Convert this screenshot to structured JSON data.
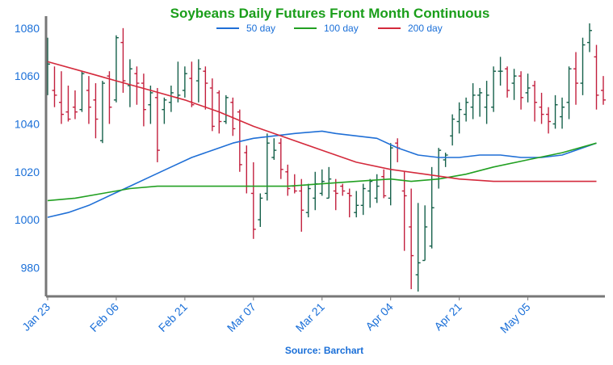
{
  "chart_data": {
    "type": "ohlc",
    "title": "Soybeans Daily Futures Front Month Continuous",
    "source": "Source: Barchart",
    "ylim": [
      968,
      1085
    ],
    "yticks": [
      980,
      1000,
      1020,
      1040,
      1060,
      1080
    ],
    "x_tick_labels": [
      "Jan 23",
      "Feb 06",
      "Feb 21",
      "Mar 07",
      "Mar 21",
      "Apr 04",
      "Apr 21",
      "May 05"
    ],
    "x_tick_index": [
      0,
      10,
      20,
      30,
      40,
      50,
      60,
      70
    ],
    "bars": [
      [
        1057,
        1076,
        1052,
        1065
      ],
      [
        1054,
        1064,
        1047,
        1052
      ],
      [
        1049,
        1062,
        1040,
        1044
      ],
      [
        1045,
        1056,
        1041,
        1042
      ],
      [
        1047,
        1054,
        1042,
        1045
      ],
      [
        1046,
        1062,
        1045,
        1061
      ],
      [
        1054,
        1060,
        1040,
        1047
      ],
      [
        1050,
        1057,
        1034,
        1042
      ],
      [
        1033,
        1058,
        1032,
        1057
      ],
      [
        1060,
        1062,
        1040,
        1047
      ],
      [
        1050,
        1077,
        1049,
        1076
      ],
      [
        1074,
        1080,
        1053,
        1058
      ],
      [
        1056,
        1067,
        1047,
        1063
      ],
      [
        1061,
        1064,
        1048,
        1057
      ],
      [
        1057,
        1061,
        1039,
        1046
      ],
      [
        1048,
        1056,
        1040,
        1053
      ],
      [
        1051,
        1055,
        1024,
        1029
      ],
      [
        1046,
        1051,
        1040,
        1050
      ],
      [
        1049,
        1056,
        1045,
        1053
      ],
      [
        1051,
        1066,
        1049,
        1052
      ],
      [
        1054,
        1064,
        1051,
        1061
      ],
      [
        1059,
        1066,
        1047,
        1048
      ],
      [
        1058,
        1067,
        1049,
        1063
      ],
      [
        1062,
        1064,
        1046,
        1057
      ],
      [
        1055,
        1059,
        1037,
        1039
      ],
      [
        1053,
        1054,
        1036,
        1041
      ],
      [
        1041,
        1052,
        1040,
        1051
      ],
      [
        1049,
        1051,
        1035,
        1038
      ],
      [
        1045,
        1046,
        1020,
        1023
      ],
      [
        1028,
        1031,
        1011,
        1014
      ],
      [
        1011,
        1024,
        992,
        996
      ],
      [
        1000,
        1011,
        997,
        1009
      ],
      [
        1011,
        1036,
        1008,
        1032
      ],
      [
        1026,
        1034,
        1025,
        1029
      ],
      [
        1032,
        1034,
        1017,
        1021
      ],
      [
        1020,
        1023,
        1010,
        1013
      ],
      [
        1014,
        1019,
        1011,
        1012
      ],
      [
        1012,
        1017,
        995,
        1004
      ],
      [
        1003,
        1015,
        1001,
        1013
      ],
      [
        1009,
        1020,
        1004,
        1015
      ],
      [
        1011,
        1021,
        1010,
        1016
      ],
      [
        1009,
        1022,
        1009,
        1017
      ],
      [
        1012,
        1017,
        1004,
        1011
      ],
      [
        1014,
        1015,
        1010,
        1012
      ],
      [
        1011,
        1013,
        1001,
        1010
      ],
      [
        1003,
        1012,
        1001,
        1006
      ],
      [
        1006,
        1015,
        1002,
        1013
      ],
      [
        1012,
        1017,
        1005,
        1016
      ],
      [
        1009,
        1019,
        1007,
        1014
      ],
      [
        1018,
        1021,
        1009,
        1010
      ],
      [
        1009,
        1032,
        1006,
        1030
      ],
      [
        1032,
        1034,
        1024,
        1030
      ],
      [
        1012,
        1020,
        987,
        1010
      ],
      [
        997,
        1013,
        971,
        985
      ],
      [
        977,
        1007,
        970,
        982
      ],
      [
        983,
        1006,
        983,
        997
      ],
      [
        989,
        1022,
        988,
        1005
      ],
      [
        1017,
        1030,
        1013,
        1029
      ],
      [
        1025,
        1028,
        1022,
        1027
      ],
      [
        1035,
        1044,
        1031,
        1042
      ],
      [
        1041,
        1049,
        1036,
        1046
      ],
      [
        1044,
        1051,
        1041,
        1049
      ],
      [
        1047,
        1057,
        1042,
        1052
      ],
      [
        1052,
        1055,
        1043,
        1053
      ],
      [
        1047,
        1058,
        1040,
        1052
      ],
      [
        1047,
        1064,
        1045,
        1062
      ],
      [
        1062,
        1068,
        1056,
        1062
      ],
      [
        1063,
        1064,
        1051,
        1054
      ],
      [
        1057,
        1063,
        1050,
        1060
      ],
      [
        1060,
        1062,
        1046,
        1051
      ],
      [
        1053,
        1061,
        1049,
        1055
      ],
      [
        1056,
        1058,
        1041,
        1049
      ],
      [
        1047,
        1053,
        1040,
        1044
      ],
      [
        1044,
        1047,
        1036,
        1041
      ],
      [
        1040,
        1052,
        1038,
        1048
      ],
      [
        1043,
        1051,
        1038,
        1047
      ],
      [
        1049,
        1064,
        1042,
        1063
      ],
      [
        1063,
        1070,
        1048,
        1057
      ],
      [
        1057,
        1076,
        1052,
        1073
      ],
      [
        1074,
        1082,
        1070,
        1079
      ],
      [
        1068,
        1073,
        1046,
        1052
      ],
      [
        1054,
        1060,
        1048,
        1050
      ]
    ],
    "series": [
      {
        "name": "50 day",
        "color": "#1f6fd6",
        "points": [
          [
            0,
            1001
          ],
          [
            3,
            1003
          ],
          [
            6,
            1006
          ],
          [
            9,
            1010
          ],
          [
            12,
            1014
          ],
          [
            15,
            1018
          ],
          [
            18,
            1022
          ],
          [
            21,
            1026
          ],
          [
            24,
            1029
          ],
          [
            27,
            1032
          ],
          [
            30,
            1034
          ],
          [
            33,
            1035
          ],
          [
            36,
            1036
          ],
          [
            40,
            1037
          ],
          [
            42,
            1036
          ],
          [
            45,
            1035
          ],
          [
            48,
            1034
          ],
          [
            51,
            1030
          ],
          [
            54,
            1027
          ],
          [
            57,
            1026
          ],
          [
            60,
            1026
          ],
          [
            63,
            1027
          ],
          [
            66,
            1027
          ],
          [
            69,
            1026
          ],
          [
            72,
            1026
          ],
          [
            75,
            1027
          ],
          [
            78,
            1030
          ],
          [
            80,
            1032
          ]
        ]
      },
      {
        "name": "100 day",
        "color": "#22a022",
        "points": [
          [
            0,
            1008
          ],
          [
            4,
            1009
          ],
          [
            8,
            1011
          ],
          [
            12,
            1013
          ],
          [
            16,
            1014
          ],
          [
            20,
            1014
          ],
          [
            25,
            1014
          ],
          [
            30,
            1014
          ],
          [
            35,
            1014
          ],
          [
            40,
            1015
          ],
          [
            45,
            1016
          ],
          [
            50,
            1017
          ],
          [
            53,
            1016
          ],
          [
            57,
            1017
          ],
          [
            61,
            1019
          ],
          [
            65,
            1022
          ],
          [
            70,
            1025
          ],
          [
            75,
            1028
          ],
          [
            80,
            1032
          ]
        ]
      },
      {
        "name": "200 day",
        "color": "#d42a3c",
        "points": [
          [
            0,
            1066
          ],
          [
            5,
            1062
          ],
          [
            10,
            1058
          ],
          [
            15,
            1054
          ],
          [
            20,
            1050
          ],
          [
            25,
            1045
          ],
          [
            30,
            1039
          ],
          [
            35,
            1034
          ],
          [
            40,
            1029
          ],
          [
            45,
            1024
          ],
          [
            50,
            1021
          ],
          [
            55,
            1019
          ],
          [
            60,
            1017
          ],
          [
            65,
            1016
          ],
          [
            70,
            1016
          ],
          [
            75,
            1016
          ],
          [
            80,
            1016
          ]
        ]
      }
    ],
    "colors": {
      "title": "#1a9e1a",
      "axis_labels": "#1a6fd8",
      "source": "#1a6fd8",
      "bar_up": "#15604a",
      "bar_down": "#c21f3d",
      "axis_line": "#777777"
    }
  }
}
